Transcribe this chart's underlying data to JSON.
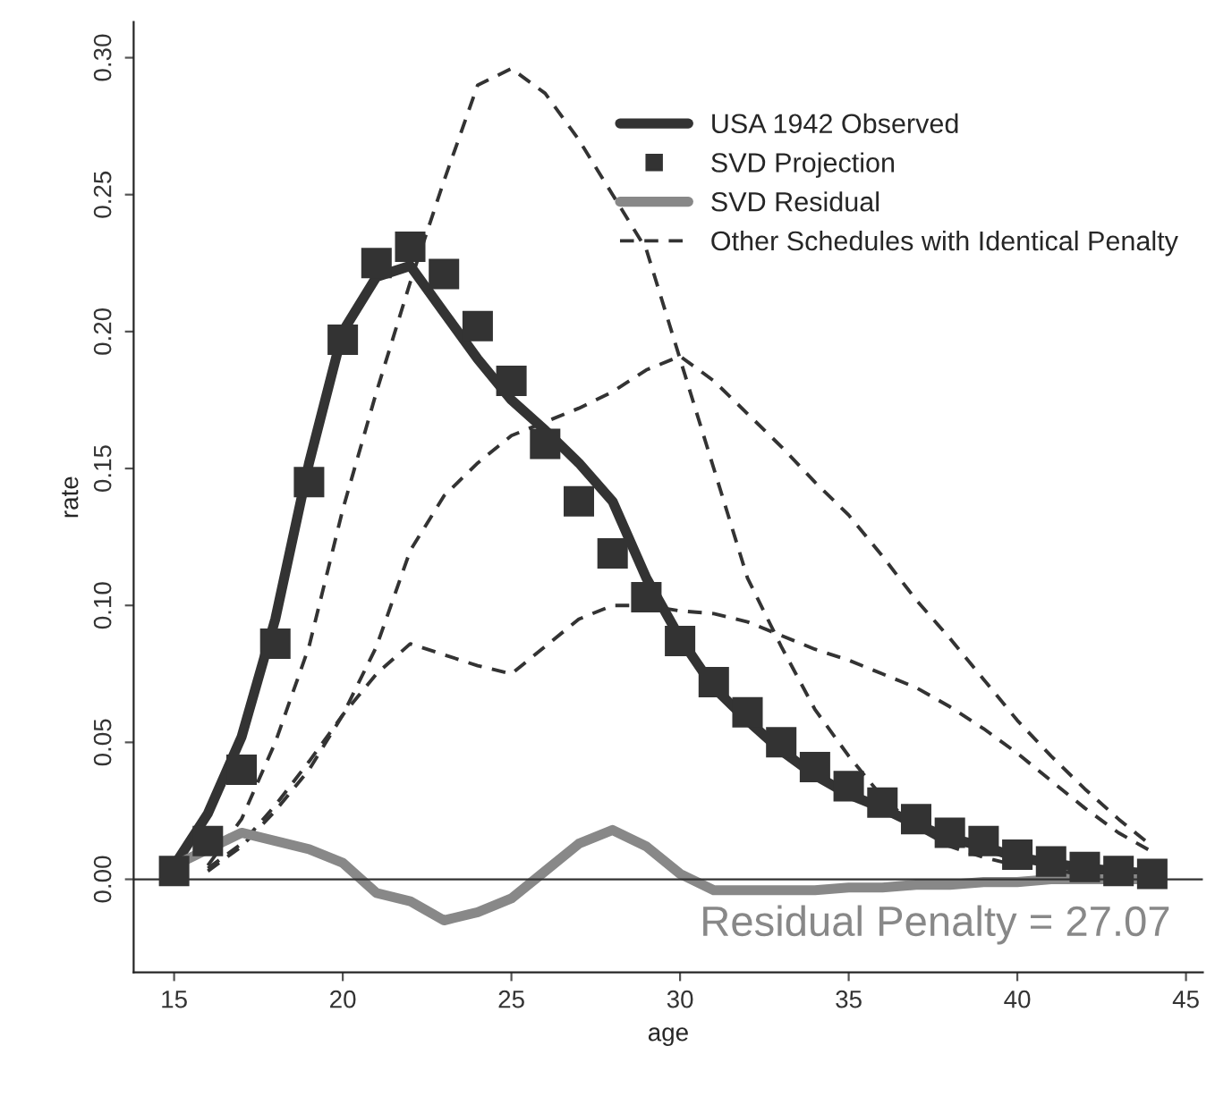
{
  "chart_data": {
    "type": "line",
    "xlabel": "age",
    "ylabel": "rate",
    "x": [
      15,
      16,
      17,
      18,
      19,
      20,
      21,
      22,
      23,
      24,
      25,
      26,
      27,
      28,
      29,
      30,
      31,
      32,
      33,
      34,
      35,
      36,
      37,
      38,
      39,
      40,
      41,
      42,
      43,
      44
    ],
    "xlim": [
      13.8,
      45.5
    ],
    "xticks": [
      15,
      20,
      25,
      30,
      35,
      40,
      45
    ],
    "ylim": [
      -0.034,
      0.313
    ],
    "yticks": [
      {
        "value": 0,
        "label": "0.00"
      },
      {
        "value": 0.05,
        "label": "0.05"
      },
      {
        "value": 0.1,
        "label": "0.10"
      },
      {
        "value": 0.15,
        "label": "0.15"
      },
      {
        "value": 0.2,
        "label": "0.20"
      },
      {
        "value": 0.25,
        "label": "0.25"
      },
      {
        "value": 0.3,
        "label": "0.30"
      }
    ],
    "series": [
      {
        "name": "Other Schedules with Identical Penalty",
        "line_style": "dashed",
        "color": "#333333",
        "values": [
          null,
          0.005,
          0.022,
          0.05,
          0.085,
          0.135,
          0.178,
          0.218,
          0.255,
          0.29,
          0.296,
          0.287,
          0.27,
          0.25,
          0.23,
          0.19,
          0.15,
          0.11,
          0.085,
          0.062,
          0.045,
          0.03,
          0.019,
          0.012,
          0.008,
          0.005,
          0.003,
          0.002,
          0.001,
          0.001
        ]
      },
      {
        "line_style": "dashed",
        "color": "#333333",
        "values": [
          null,
          0.003,
          0.012,
          0.025,
          0.04,
          0.06,
          0.085,
          0.12,
          0.14,
          0.152,
          0.162,
          0.167,
          0.172,
          0.178,
          0.186,
          0.191,
          0.182,
          0.17,
          0.158,
          0.145,
          0.133,
          0.118,
          0.102,
          0.088,
          0.073,
          0.058,
          0.045,
          0.033,
          0.022,
          0.012
        ]
      },
      {
        "line_style": "dashed",
        "color": "#333333",
        "values": [
          null,
          0.004,
          0.013,
          0.027,
          0.043,
          0.06,
          0.075,
          0.086,
          0.082,
          0.078,
          0.075,
          0.085,
          0.095,
          0.1,
          0.1,
          0.098,
          0.097,
          0.094,
          0.089,
          0.084,
          0.08,
          0.075,
          0.07,
          0.063,
          0.055,
          0.046,
          0.036,
          0.026,
          0.017,
          0.01
        ]
      },
      {
        "name": "USA 1942 Observed",
        "type": "line",
        "line_style": "solid",
        "color": "#333333",
        "values": [
          0.005,
          0.024,
          0.052,
          0.095,
          0.152,
          0.2,
          0.22,
          0.224,
          0.207,
          0.19,
          0.175,
          0.164,
          0.152,
          0.138,
          0.11,
          0.088,
          0.07,
          0.058,
          0.047,
          0.038,
          0.031,
          0.026,
          0.02,
          0.015,
          0.012,
          0.008,
          0.006,
          0.004,
          0.003,
          0.002
        ]
      },
      {
        "name": "SVD Projection",
        "type": "scatter",
        "marker": "square",
        "color": "#333333",
        "values": [
          0.003,
          0.014,
          0.04,
          0.086,
          0.145,
          0.197,
          0.225,
          0.231,
          0.221,
          0.202,
          0.182,
          0.159,
          0.138,
          0.119,
          0.103,
          0.087,
          0.072,
          0.061,
          0.05,
          0.041,
          0.034,
          0.028,
          0.022,
          0.017,
          0.014,
          0.009,
          0.0065,
          0.0045,
          0.003,
          0.002
        ]
      },
      {
        "name": "SVD Residual",
        "type": "line",
        "line_style": "solid",
        "color": "#888888",
        "values": [
          0.005,
          0.011,
          0.017,
          0.014,
          0.011,
          0.006,
          -0.005,
          -0.008,
          -0.015,
          -0.012,
          -0.007,
          0.003,
          0.013,
          0.018,
          0.012,
          0.002,
          -0.004,
          -0.004,
          -0.004,
          -0.004,
          -0.003,
          -0.003,
          -0.002,
          -0.002,
          -0.001,
          -0.001,
          0,
          0,
          0,
          0
        ]
      }
    ],
    "ref_lines": [
      {
        "axis": "y",
        "value": 0,
        "color": "#333333"
      }
    ],
    "annotations": [
      "Residual Penalty = 27.07"
    ],
    "legend": "top right",
    "grid": false
  }
}
